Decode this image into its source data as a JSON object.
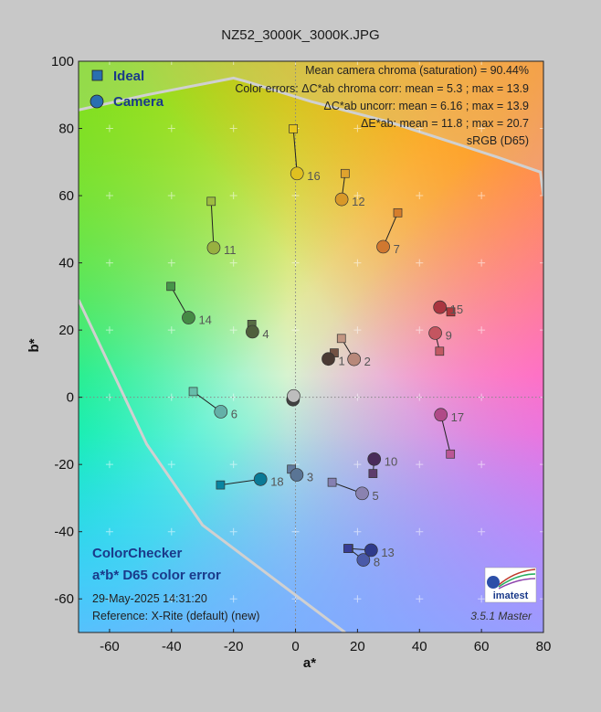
{
  "title": "NZ52_3000K_3000K.JPG",
  "legend": {
    "ideal": "Ideal",
    "camera": "Camera"
  },
  "info_lines": [
    "Mean camera chroma (saturation) = 90.44%",
    "Color errors: ΔC*ab chroma corr:  mean = 5.3 ;  max = 13.9",
    "ΔC*ab uncorr:  mean = 6.16 ;  max = 13.9",
    "ΔE*ab:  mean = 11.8 ;  max = 20.7",
    "sRGB (D65)"
  ],
  "chart_info": {
    "title": "ColorChecker",
    "subtitle": "a*b* D65 color error",
    "date": "29-May-2025 14:31:20",
    "reference": "Reference: X-Rite (default) (new)"
  },
  "version": "3.5.1  Master",
  "logo_text": "imatest",
  "colors": {
    "background": "#c8c8c8",
    "ideal_marker": "#2a6fb0",
    "camera_marker": "#2a6fb0",
    "gamut_line": "#d0d0d0"
  },
  "chart_data": {
    "type": "scatter",
    "title": "NZ52_3000K_3000K.JPG",
    "xlabel": "a*",
    "ylabel": "b*",
    "xlim": [
      -70,
      80
    ],
    "ylim": [
      -70,
      100
    ],
    "xticks": [
      -60,
      -40,
      -20,
      0,
      20,
      40,
      60,
      80
    ],
    "yticks": [
      -60,
      -40,
      -20,
      0,
      20,
      40,
      60,
      80,
      100
    ],
    "grid": true,
    "legend_position": "top-left",
    "gamut_boundary_name": "sRGB (D65)",
    "gamut_boundary": [
      [
        -70,
        85.5
      ],
      [
        -48,
        90
      ],
      [
        -20,
        95
      ],
      [
        -16,
        94
      ],
      [
        5,
        88
      ],
      [
        30,
        82
      ],
      [
        50,
        76
      ],
      [
        65,
        71.5
      ],
      [
        79,
        67
      ],
      [
        80,
        60
      ],
      [
        80,
        -70
      ],
      [
        16,
        -70
      ],
      [
        -30,
        -38
      ],
      [
        -48,
        -14
      ],
      [
        -70,
        29
      ]
    ],
    "patches": [
      {
        "label": "1",
        "ideal": [
          12.5,
          13.2
        ],
        "camera": [
          10.6,
          11.4
        ],
        "ideal_color": "#735244",
        "camera_color": "#4a3a33"
      },
      {
        "label": "2",
        "ideal": [
          14.8,
          17.5
        ],
        "camera": [
          18.9,
          11.3
        ],
        "ideal_color": "#c29682",
        "camera_color": "#b8887a"
      },
      {
        "label": "3",
        "ideal": [
          -1.3,
          -21.4
        ],
        "camera": [
          0.4,
          -23.1
        ],
        "ideal_color": "#627a9d",
        "camera_color": "#5a7595"
      },
      {
        "label": "4",
        "ideal": [
          -14.1,
          21.7
        ],
        "camera": [
          -13.9,
          19.5
        ],
        "ideal_color": "#576c43",
        "camera_color": "#4f5f3c"
      },
      {
        "label": "5",
        "ideal": [
          11.8,
          -25.3
        ],
        "camera": [
          21.5,
          -28.6
        ],
        "ideal_color": "#8580b1",
        "camera_color": "#8a82b0"
      },
      {
        "label": "6",
        "ideal": [
          -33,
          1.7
        ],
        "camera": [
          -24.1,
          -4.3
        ],
        "ideal_color": "#67bdaa",
        "camera_color": "#64b0a8"
      },
      {
        "label": "7",
        "ideal": [
          33,
          54.9
        ],
        "camera": [
          28.3,
          44.8
        ],
        "ideal_color": "#d67e2c",
        "camera_color": "#d07830"
      },
      {
        "label": "8",
        "ideal": [
          17.2,
          -45
        ],
        "camera": [
          21.9,
          -48.4
        ],
        "ideal_color": "#505ba6",
        "camera_color": "#4a5aa8"
      },
      {
        "label": "9",
        "ideal": [
          46.5,
          13.7
        ],
        "camera": [
          45.1,
          19.1
        ],
        "ideal_color": "#c15a63",
        "camera_color": "#c45560"
      },
      {
        "label": "10",
        "ideal": [
          25,
          -22.7
        ],
        "camera": [
          25.4,
          -18.4
        ],
        "ideal_color": "#5e3c6c",
        "camera_color": "#4a2c5a"
      },
      {
        "label": "11",
        "ideal": [
          -27.2,
          58.3
        ],
        "camera": [
          -26.4,
          44.5
        ],
        "ideal_color": "#9dbc40",
        "camera_color": "#98b040"
      },
      {
        "label": "12",
        "ideal": [
          16,
          66.6
        ],
        "camera": [
          14.9,
          58.9
        ],
        "ideal_color": "#e0a32e",
        "camera_color": "#d89828"
      },
      {
        "label": "13",
        "ideal": [
          16.9,
          -45
        ],
        "camera": [
          24.4,
          -45.5
        ],
        "ideal_color": "#383d96",
        "camera_color": "#2f3a8a"
      },
      {
        "label": "14",
        "ideal": [
          -40.2,
          33
        ],
        "camera": [
          -34.5,
          23.7
        ],
        "ideal_color": "#469449",
        "camera_color": "#458a45"
      },
      {
        "label": "15",
        "ideal": [
          50.1,
          25.4
        ],
        "camera": [
          46.6,
          26.8
        ],
        "ideal_color": "#af363c",
        "camera_color": "#aa3540"
      },
      {
        "label": "16",
        "ideal": [
          -0.7,
          79.9
        ],
        "camera": [
          0.5,
          66.6
        ],
        "ideal_color": "#e7c71f",
        "camera_color": "#e0c020"
      },
      {
        "label": "17",
        "ideal": [
          50,
          -16.9
        ],
        "camera": [
          46.9,
          -5.2
        ],
        "ideal_color": "#bb5695",
        "camera_color": "#b04a88"
      },
      {
        "label": "18",
        "ideal": [
          -24.2,
          -26.1
        ],
        "camera": [
          -11.3,
          -24.4
        ],
        "ideal_color": "#0885a1",
        "camera_color": "#0a7a96"
      },
      {
        "label": "",
        "ideal": [
          -0.5,
          -0.3
        ],
        "camera": [
          -0.8,
          -0.7
        ],
        "ideal_color": "#f3f3f2",
        "camera_color": "#404040"
      },
      {
        "label": "",
        "ideal": [
          -0.2,
          0.2
        ],
        "camera": [
          -0.6,
          0.4
        ],
        "ideal_color": "#c8c8c8",
        "camera_color": "#bdbdbd"
      }
    ]
  }
}
